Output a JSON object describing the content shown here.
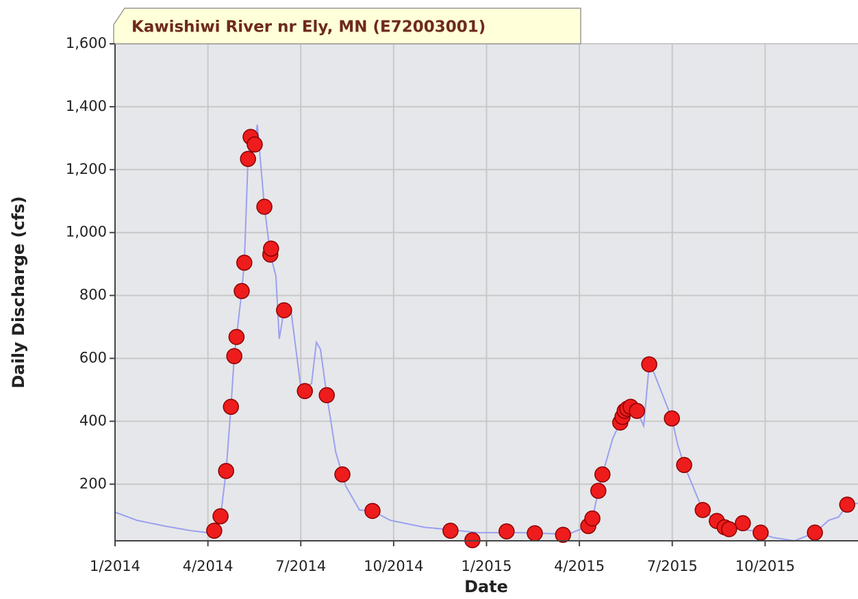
{
  "chart_data": {
    "type": "line",
    "title": "Kawishiwi River nr Ely, MN (E72003001)",
    "x_label": "Date",
    "y_label": "Daily Discharge (cfs)",
    "xlim": [
      2014.0,
      2016.0
    ],
    "xticks": [
      {
        "value": 2014.0,
        "label": "1/2014"
      },
      {
        "value": 2014.25,
        "label": "4/2014"
      },
      {
        "value": 2014.5,
        "label": "7/2014"
      },
      {
        "value": 2014.75,
        "label": "10/2014"
      },
      {
        "value": 2015.0,
        "label": "1/2015"
      },
      {
        "value": 2015.25,
        "label": "4/2015"
      },
      {
        "value": 2015.5,
        "label": "7/2015"
      },
      {
        "value": 2015.75,
        "label": "10/2015"
      }
    ],
    "ylim": [
      20,
      1600
    ],
    "yticks": [
      {
        "value": 200,
        "label": "200"
      },
      {
        "value": 400,
        "label": "400"
      },
      {
        "value": 600,
        "label": "600"
      },
      {
        "value": 800,
        "label": "800"
      },
      {
        "value": 1000,
        "label": "1,000"
      },
      {
        "value": 1200,
        "label": "1,200"
      },
      {
        "value": 1400,
        "label": "1,400"
      },
      {
        "value": 1600,
        "label": "1,600"
      }
    ],
    "grid": true,
    "line": {
      "color": "#9aa0f0",
      "x": [
        2014.0,
        2014.059,
        2014.133,
        2014.206,
        2014.249,
        2014.267,
        2014.284,
        2014.299,
        2014.312,
        2014.321,
        2014.327,
        2014.341,
        2014.348,
        2014.358,
        2014.365,
        2014.376,
        2014.383,
        2014.402,
        2014.418,
        2014.433,
        2014.442,
        2014.455,
        2014.474,
        2014.501,
        2014.529,
        2014.542,
        2014.553,
        2014.57,
        2014.594,
        2014.621,
        2014.658,
        2014.693,
        2014.741,
        2014.833,
        2014.981,
        2015.091,
        2015.22,
        2015.274,
        2015.285,
        2015.301,
        2015.312,
        2015.34,
        2015.36,
        2015.379,
        2015.405,
        2015.423,
        2015.438,
        2015.451,
        2015.469,
        2015.499,
        2015.515,
        2015.532,
        2015.582,
        2015.641,
        2015.715,
        2015.773,
        2015.829,
        2015.884,
        2015.921,
        2015.948,
        2015.971,
        2016.0
      ],
      "values": [
        111,
        85,
        67,
        52,
        46,
        52,
        98,
        242,
        446,
        607,
        668,
        814,
        904,
        1234,
        1304,
        1280,
        1343,
        1082,
        930,
        862,
        662,
        753,
        749,
        499,
        520,
        651,
        629,
        483,
        303,
        194,
        118,
        115,
        85,
        63,
        46,
        46,
        41,
        67,
        91,
        179,
        231,
        346,
        396,
        440,
        433,
        385,
        581,
        553,
        499,
        409,
        324,
        261,
        118,
        63,
        52,
        30,
        20,
        46,
        85,
        96,
        135,
        139
      ]
    },
    "points": {
      "color": "#ee1c1c",
      "x": [
        2014.267,
        2014.284,
        2014.299,
        2014.312,
        2014.321,
        2014.327,
        2014.341,
        2014.348,
        2014.358,
        2014.365,
        2014.376,
        2014.402,
        2014.418,
        2014.42,
        2014.455,
        2014.511,
        2014.57,
        2014.612,
        2014.693,
        2014.903,
        2014.962,
        2015.054,
        2015.13,
        2015.206,
        2015.274,
        2015.285,
        2015.301,
        2015.312,
        2015.36,
        2015.366,
        2015.372,
        2015.379,
        2015.388,
        2015.405,
        2015.438,
        2015.499,
        2015.532,
        2015.582,
        2015.62,
        2015.641,
        2015.653,
        2015.69,
        2015.738,
        2015.884,
        2015.971
      ],
      "values": [
        52,
        98,
        242,
        446,
        607,
        668,
        814,
        904,
        1234,
        1304,
        1280,
        1082,
        930,
        949,
        753,
        496,
        483,
        231,
        115,
        52,
        22,
        50,
        44,
        39,
        67,
        91,
        179,
        231,
        396,
        414,
        433,
        440,
        446,
        433,
        581,
        409,
        261,
        118,
        83,
        63,
        57,
        76,
        46,
        46,
        135
      ]
    }
  }
}
